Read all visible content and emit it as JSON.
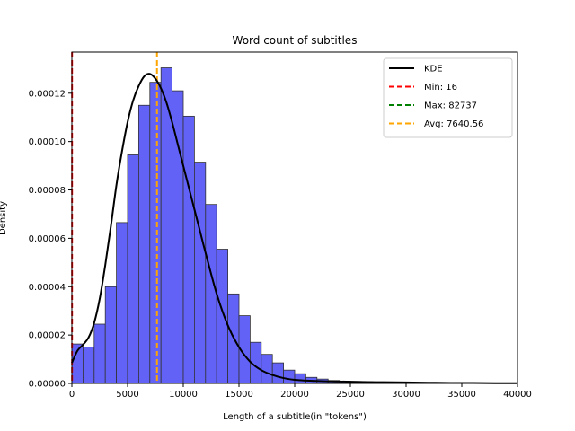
{
  "chart_data": {
    "type": "histogram",
    "title": "Word count of subtitles",
    "xlabel": "Length of a subtitle(in \"tokens\")",
    "ylabel": "Density",
    "xlim": [
      0,
      40000
    ],
    "ylim": [
      0,
      0.000137
    ],
    "grid": false,
    "legend_position": "top-right",
    "xticks": [
      0,
      5000,
      10000,
      15000,
      20000,
      25000,
      30000,
      35000,
      40000
    ],
    "xtick_labels": [
      "0",
      "5000",
      "10000",
      "15000",
      "20000",
      "25000",
      "30000",
      "35000",
      "40000"
    ],
    "yticks": [
      0,
      2e-05,
      4e-05,
      6e-05,
      8e-05,
      0.0001,
      0.00012
    ],
    "ytick_labels": [
      "0.00000",
      "0.00002",
      "0.00004",
      "0.00006",
      "0.00008",
      "0.00010",
      "0.00012"
    ],
    "bin_width": 1000,
    "bins": [
      {
        "x0": 0,
        "value": 1.63e-05
      },
      {
        "x0": 1000,
        "value": 1.5e-05
      },
      {
        "x0": 2000,
        "value": 2.45e-05
      },
      {
        "x0": 3000,
        "value": 4e-05
      },
      {
        "x0": 4000,
        "value": 6.65e-05
      },
      {
        "x0": 5000,
        "value": 9.45e-05
      },
      {
        "x0": 6000,
        "value": 0.000115
      },
      {
        "x0": 7000,
        "value": 0.0001245
      },
      {
        "x0": 8000,
        "value": 0.0001305
      },
      {
        "x0": 9000,
        "value": 0.000121
      },
      {
        "x0": 10000,
        "value": 0.0001105
      },
      {
        "x0": 11000,
        "value": 9.15e-05
      },
      {
        "x0": 12000,
        "value": 7.4e-05
      },
      {
        "x0": 13000,
        "value": 5.55e-05
      },
      {
        "x0": 14000,
        "value": 3.7e-05
      },
      {
        "x0": 15000,
        "value": 2.8e-05
      },
      {
        "x0": 16000,
        "value": 1.7e-05
      },
      {
        "x0": 17000,
        "value": 1.2e-05
      },
      {
        "x0": 18000,
        "value": 8.5e-06
      },
      {
        "x0": 19000,
        "value": 5.5e-06
      },
      {
        "x0": 20000,
        "value": 4e-06
      },
      {
        "x0": 21000,
        "value": 2.5e-06
      },
      {
        "x0": 22000,
        "value": 1.8e-06
      },
      {
        "x0": 23000,
        "value": 1.2e-06
      },
      {
        "x0": 24000,
        "value": 9e-07
      },
      {
        "x0": 25000,
        "value": 8e-07
      },
      {
        "x0": 26000,
        "value": 7e-07
      },
      {
        "x0": 27000,
        "value": 6e-07
      },
      {
        "x0": 28000,
        "value": 5e-07
      },
      {
        "x0": 29000,
        "value": 4e-07
      },
      {
        "x0": 30000,
        "value": 4e-07
      },
      {
        "x0": 31000,
        "value": 3e-07
      },
      {
        "x0": 32000,
        "value": 3e-07
      },
      {
        "x0": 33000,
        "value": 2e-07
      },
      {
        "x0": 34000,
        "value": 2e-07
      },
      {
        "x0": 35000,
        "value": 2e-07
      },
      {
        "x0": 36000,
        "value": 1e-07
      },
      {
        "x0": 37000,
        "value": 1e-07
      },
      {
        "x0": 38000,
        "value": 1e-07
      },
      {
        "x0": 39000,
        "value": 1e-07
      }
    ],
    "kde": {
      "x": [
        0,
        500,
        1000,
        1500,
        2000,
        2500,
        3000,
        3500,
        4000,
        4500,
        5000,
        5500,
        6000,
        6500,
        7000,
        7500,
        8000,
        8500,
        9000,
        9500,
        10000,
        10500,
        11000,
        11500,
        12000,
        13000,
        14000,
        15000,
        16000,
        17000,
        18000,
        19000,
        20000,
        22000,
        24000,
        26000,
        28000,
        30000,
        32000,
        34000,
        36000,
        38000,
        40000
      ],
      "y": [
        8.5e-06,
        1.35e-05,
        1.6e-05,
        1.9e-05,
        2.5e-05,
        3.5e-05,
        4.9e-05,
        6.5e-05,
        8.2e-05,
        9.6e-05,
        0.000108,
        0.000117,
        0.000123,
        0.000127,
        0.000128,
        0.000126,
        0.000122,
        0.000116,
        0.000108,
        9.9e-05,
        9e-05,
        8.1e-05,
        7.2e-05,
        6.3e-05,
        5.4e-05,
        3.7e-05,
        2.4e-05,
        1.5e-05,
        9e-06,
        5.5e-06,
        3.5e-06,
        2.2e-06,
        1.5e-06,
        1e-06,
        8e-07,
        6e-07,
        5e-07,
        4e-07,
        3e-07,
        2e-07,
        2e-07,
        1e-07,
        1e-07
      ]
    },
    "vlines": [
      {
        "name": "Min: 16",
        "x": 16,
        "color": "#ff0000"
      },
      {
        "name": "Max: 82737",
        "x": 82737,
        "color": "#008000"
      },
      {
        "name": "Avg: 7640.56",
        "x": 7640.56,
        "color": "#ffa500"
      }
    ],
    "legend": [
      {
        "label": "KDE",
        "color": "#000000",
        "style": "solid"
      },
      {
        "label": "Min: 16",
        "color": "#ff0000",
        "style": "dashed"
      },
      {
        "label": "Max: 82737",
        "color": "#008000",
        "style": "dashed"
      },
      {
        "label": "Avg: 7640.56",
        "color": "#ffa500",
        "style": "dashed"
      }
    ],
    "colors": {
      "bar_fill": "#6262f7",
      "bar_edge": "#333333",
      "kde": "#000000"
    }
  }
}
